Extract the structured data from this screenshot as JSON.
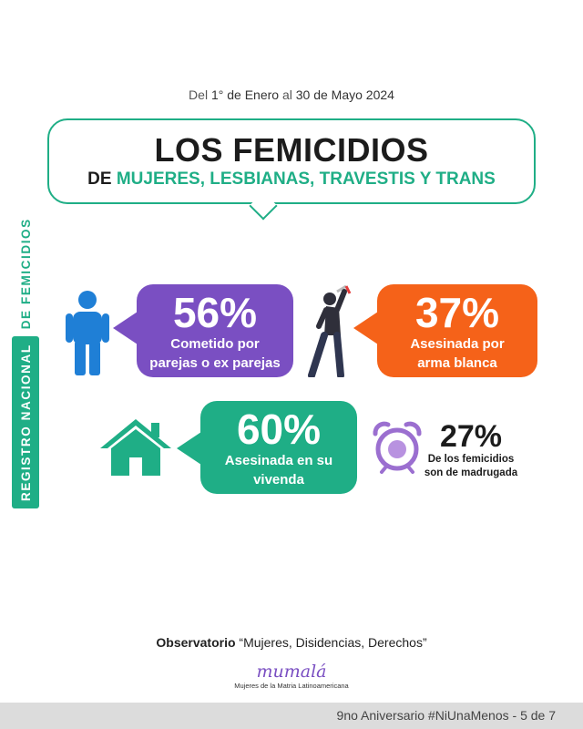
{
  "header": {
    "date_prefix": "Del",
    "date_start": "1° de Enero",
    "date_mid": "al",
    "date_end": "30 de Mayo 2024"
  },
  "title": {
    "main": "LOS FEMICIDIOS",
    "sub_prefix": "DE",
    "sub_highlight": "MUJERES, LESBIANAS, TRAVESTIS Y TRANS"
  },
  "side_label": {
    "boxed": "REGISTRO NACIONAL",
    "rest": "DE FEMICIDIOS"
  },
  "stats": [
    {
      "value": "56%",
      "label_line1": "Cometido por",
      "label_line2": "parejas o ex parejas",
      "icon": "person-icon",
      "color": "#7a4fc2"
    },
    {
      "value": "37%",
      "label_line1": "Asesinada por",
      "label_line2": "arma blanca",
      "icon": "attacker-knife-icon",
      "color": "#f56219"
    },
    {
      "value": "60%",
      "label_line1": "Asesinada en su",
      "label_line2": "vivenda",
      "icon": "house-icon",
      "color": "#1fae86"
    },
    {
      "value": "27%",
      "label_line1": "De los femicidios",
      "label_line2": "son de madrugada",
      "icon": "alarm-clock-icon",
      "color": "#9b6fd0"
    }
  ],
  "observatory": {
    "bold": "Observatorio",
    "quote": "“Mujeres, Disidencias, Derechos”"
  },
  "logo": {
    "text": "mumalá",
    "subtitle": "Mujeres de la Matria Latinoamericana"
  },
  "footer": {
    "text": "9no Aniversario #NiUnaMenos - 5 de 7"
  }
}
